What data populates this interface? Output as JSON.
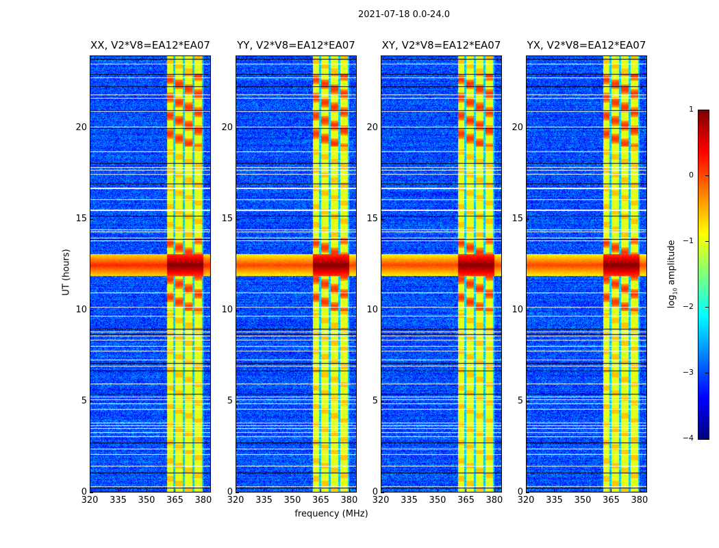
{
  "figure_title": "2021-07-18 0.0-24.0",
  "chart_data": {
    "type": "heatmap",
    "colormap": "jet",
    "panels": [
      {
        "title": "XX, V2*V8=EA12*EA07"
      },
      {
        "title": "YY, V2*V8=EA12*EA07"
      },
      {
        "title": "XY, V2*V8=EA12*EA07"
      },
      {
        "title": "YX, V2*V8=EA12*EA07"
      }
    ],
    "xlabel": "frequency (MHz)",
    "ylabel": "UT (hours)",
    "xlim": [
      320,
      384
    ],
    "ylim": [
      0,
      24
    ],
    "xticks": [
      320,
      335,
      350,
      365,
      380
    ],
    "yticks": [
      0,
      5,
      10,
      15,
      20
    ],
    "xtick_labels": [
      "320",
      "335",
      "350",
      "365",
      "380"
    ],
    "ytick_labels": [
      "0",
      "5",
      "10",
      "15",
      "20"
    ],
    "colorbar": {
      "label_prefix": "log",
      "label_sub": "10",
      "label_suffix": " amplitude",
      "range": [
        -4,
        1
      ],
      "ticks": [
        1,
        0,
        -1,
        -2,
        -3,
        -4
      ],
      "tick_labels": [
        "1",
        "0",
        "−1",
        "−2",
        "−3",
        "−4"
      ]
    },
    "background_log_amplitude": -3,
    "bright_subbands_mhz": [
      [
        360.5,
        365
      ],
      [
        365,
        370
      ],
      [
        370,
        375
      ],
      [
        375,
        380
      ]
    ],
    "bright_subband_log_amplitude": -1,
    "strong_rfi_hours": [
      [
        10,
        14
      ],
      [
        19,
        23
      ]
    ],
    "broadband_event_hours": [
      11.9,
      13.1
    ],
    "flagged_hours_white": [
      0.35,
      1.45,
      2.1,
      2.4,
      3.1,
      3.3,
      3.55,
      3.7,
      3.85,
      4.6,
      4.9,
      5.1,
      5.25,
      6.0,
      6.95,
      7.3,
      7.8,
      8.05,
      8.4,
      8.6,
      8.85,
      9.7,
      10.2,
      11.0,
      13.85,
      14.0,
      14.35,
      14.45,
      15.5,
      15.55,
      16.1,
      16.7,
      16.75,
      17.5,
      17.7,
      17.85,
      18.75,
      20.1,
      20.95,
      21.65,
      21.85,
      22.8,
      23.55
    ],
    "flagged_hours_black": [
      0.25,
      1.1,
      2.75,
      5.4,
      6.7,
      7.1,
      8.7,
      9.0,
      13.9,
      15.2,
      16.95,
      18.1,
      20.0,
      21.0,
      22.3,
      23.0,
      23.8
    ]
  }
}
